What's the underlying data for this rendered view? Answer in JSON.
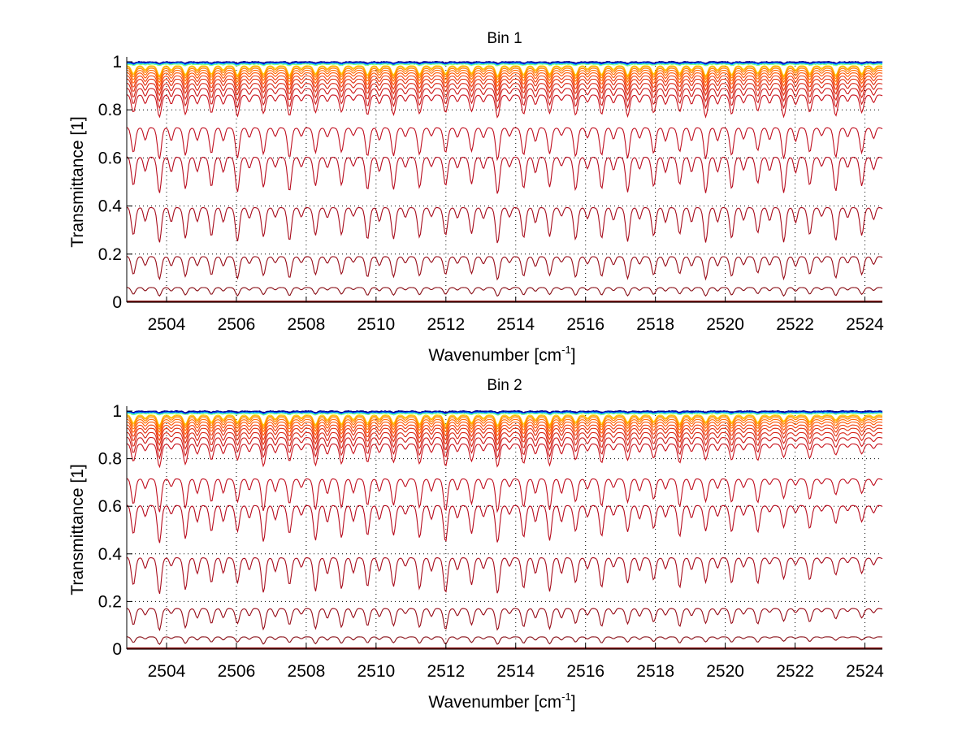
{
  "chart_data": [
    {
      "type": "line",
      "title": "Bin 1",
      "xlabel": "Wavenumber [cm",
      "xlabel_sup": "-1",
      "xlabel_end": "]",
      "ylabel": "Transmittance [1]",
      "xlim": [
        2502.86,
        2524.5
      ],
      "ylim": [
        0,
        1
      ],
      "xticks": [
        2504,
        2506,
        2508,
        2510,
        2512,
        2514,
        2516,
        2518,
        2520,
        2522,
        2524
      ],
      "xtick_labels": [
        "2504",
        "2506",
        "2508",
        "2510",
        "2512",
        "2514",
        "2516",
        "2518",
        "2520",
        "2522",
        "2524"
      ],
      "yticks": [
        0,
        0.2,
        0.4,
        0.6,
        0.8,
        1
      ],
      "ytick_labels": [
        "0",
        "0.2",
        "0.4",
        "0.6",
        "0.8",
        "1"
      ],
      "grid": true,
      "line_spacing_cm": 0.745,
      "first_line_cm": 2503.05,
      "series_levels": [
        1.0,
        0.998,
        0.995,
        0.992,
        0.988,
        0.984,
        0.978,
        0.97,
        0.96,
        0.948,
        0.935,
        0.918,
        0.898,
        0.872,
        0.74,
        0.62,
        0.41,
        0.2,
        0.065,
        0.0
      ],
      "series_colors": [
        "#00008f",
        "#0040ff",
        "#00c0ff",
        "#80ff80",
        "#ffd000",
        "#ffa000",
        "#ff8000",
        "#ff6a00",
        "#ff5500",
        "#f04010",
        "#e03010",
        "#d82818",
        "#cc1a1a",
        "#c8141e",
        "#c01020",
        "#b80c1e",
        "#a80c1c",
        "#980c18",
        "#880c14",
        "#800000"
      ],
      "right_damping": 0.0
    },
    {
      "type": "line",
      "title": "Bin 2",
      "xlabel": "Wavenumber [cm",
      "xlabel_sup": "-1",
      "xlabel_end": "]",
      "ylabel": "Transmittance [1]",
      "xlim": [
        2502.86,
        2524.5
      ],
      "ylim": [
        0,
        1
      ],
      "xticks": [
        2504,
        2506,
        2508,
        2510,
        2512,
        2514,
        2516,
        2518,
        2520,
        2522,
        2524
      ],
      "xtick_labels": [
        "2504",
        "2506",
        "2508",
        "2510",
        "2512",
        "2514",
        "2516",
        "2518",
        "2520",
        "2522",
        "2524"
      ],
      "yticks": [
        0,
        0.2,
        0.4,
        0.6,
        0.8,
        1
      ],
      "ytick_labels": [
        "0",
        "0.2",
        "0.4",
        "0.6",
        "0.8",
        "1"
      ],
      "grid": true,
      "line_spacing_cm": 0.745,
      "first_line_cm": 2503.05,
      "series_levels": [
        1.0,
        0.998,
        0.995,
        0.992,
        0.988,
        0.984,
        0.978,
        0.97,
        0.96,
        0.948,
        0.935,
        0.918,
        0.898,
        0.872,
        0.73,
        0.62,
        0.4,
        0.18,
        0.055,
        0.0
      ],
      "series_colors": [
        "#00008f",
        "#0040ff",
        "#00c0ff",
        "#80ff80",
        "#ffd000",
        "#ffa000",
        "#ff8000",
        "#ff6a00",
        "#ff5500",
        "#f04010",
        "#e03010",
        "#d82818",
        "#cc1a1a",
        "#c8141e",
        "#c01020",
        "#b80c1e",
        "#a80c1c",
        "#980c18",
        "#880c14",
        "#800000"
      ],
      "right_damping": 0.45
    }
  ]
}
